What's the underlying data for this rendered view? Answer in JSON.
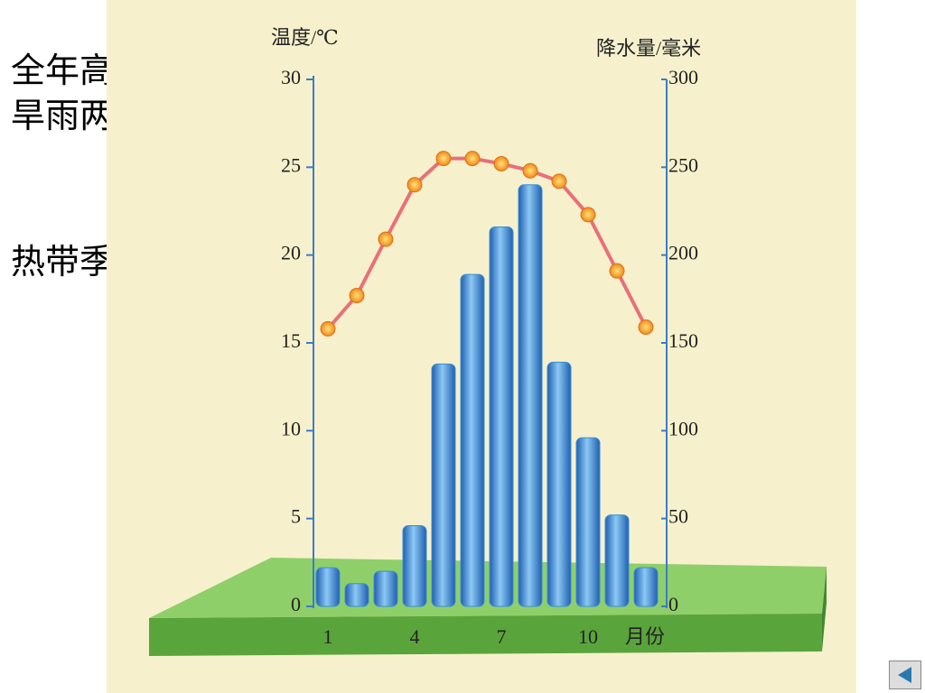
{
  "slide_text": [
    "全年高温分",
    "旱雨两季",
    "热带季风气候"
  ],
  "chart_data": {
    "type": "combo",
    "ylabel": "温度/℃",
    "y2label": "降水量/毫米",
    "xlabel": "月份",
    "categories": [
      "1",
      null,
      null,
      "4",
      null,
      null,
      "7",
      null,
      null,
      "10",
      null,
      null
    ],
    "series": [
      {
        "type": "bar",
        "axis": "y2",
        "color": "#3a8fd8",
        "values": [
          22,
          13,
          20,
          46,
          138,
          189,
          216,
          240,
          139,
          96,
          52,
          22
        ]
      },
      {
        "type": "line",
        "axis": "y",
        "color": "#e8707a",
        "values": [
          15.8,
          17.7,
          20.9,
          24,
          25.5,
          25.5,
          25.2,
          24.8,
          24.2,
          22.3,
          19.1,
          15.9
        ]
      }
    ],
    "ylim": [
      0,
      30
    ],
    "yticks": [
      0,
      5,
      10,
      15,
      20,
      25,
      30
    ],
    "y2lim": [
      0,
      300
    ],
    "y2ticks": [
      0,
      50,
      100,
      150,
      200,
      250,
      300
    ]
  }
}
